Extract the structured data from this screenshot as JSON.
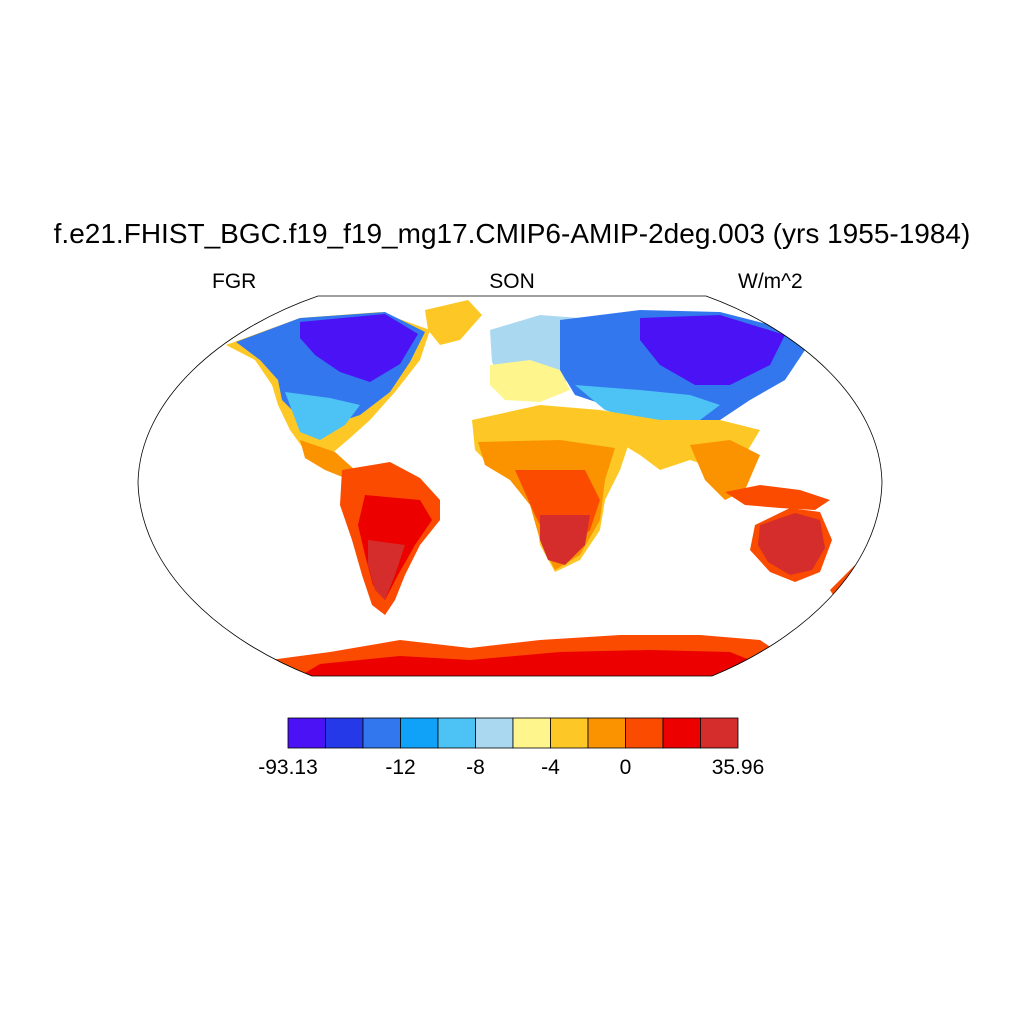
{
  "title": "f.e21.FHIST_BGC.f19_f19_mg17.CMIP6-AMIP-2deg.003 (yrs 1955-1984)",
  "left_label": "FGR",
  "center_label": "SON",
  "right_label": "W/m^2",
  "colorbar": {
    "colors": [
      "#4b12f5",
      "#2639e8",
      "#3377ee",
      "#10a1f8",
      "#4cc3f4",
      "#aad8f0",
      "#fef58c",
      "#fdc825",
      "#fb9300",
      "#fb4b00",
      "#ec0000",
      "#d42d2c"
    ],
    "labels": [
      "-93.13",
      "-12",
      "-8",
      "-4",
      "0",
      "35.96"
    ],
    "label_positions": [
      0,
      3,
      5,
      7,
      9,
      12
    ]
  },
  "colors": {
    "land_background": "#ffffff",
    "outline": "#000000"
  }
}
